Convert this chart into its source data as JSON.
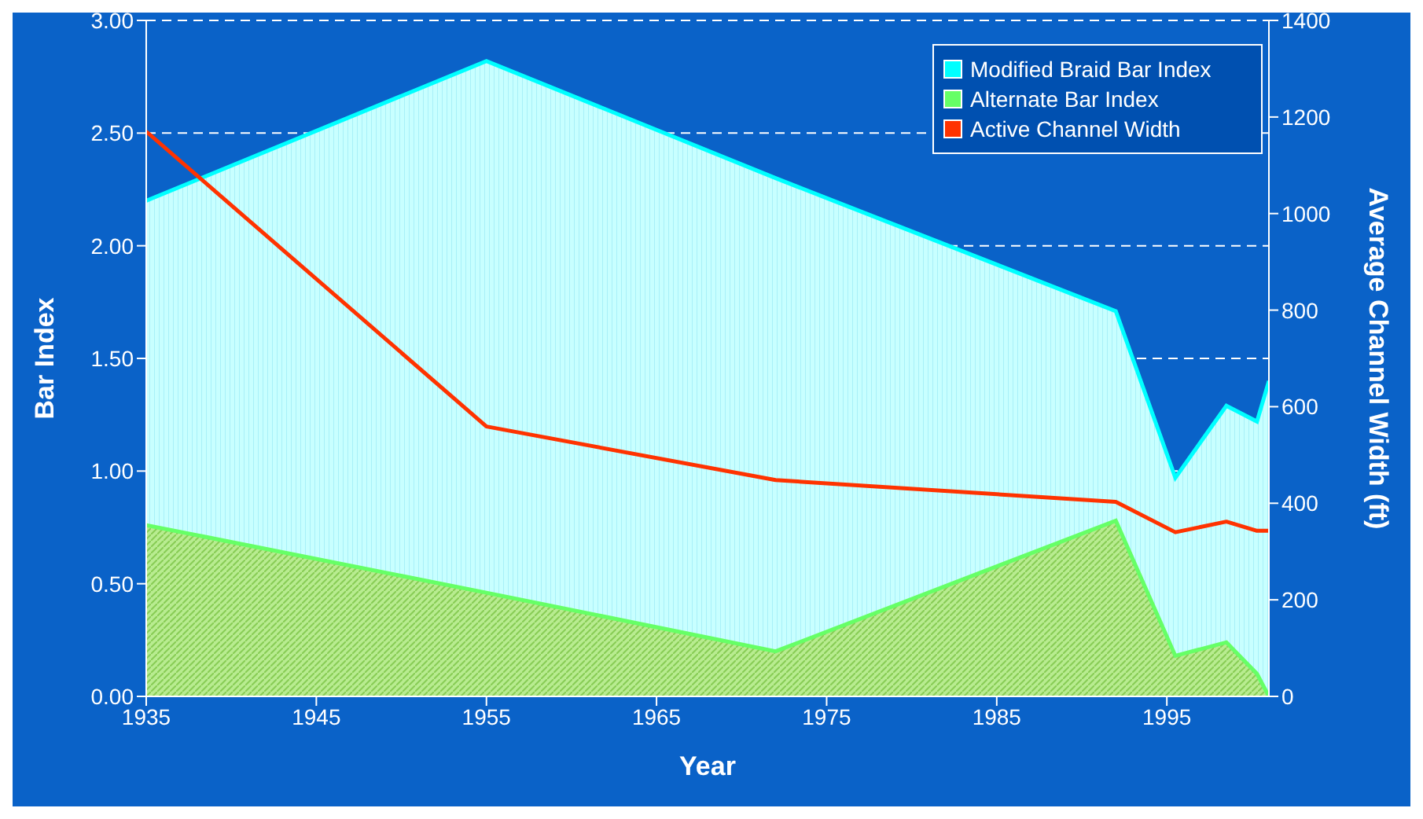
{
  "chart_data": {
    "type": "area",
    "xlabel": "Year",
    "ylabel": "Bar Index",
    "y2label": "Average Channel Width (ft)",
    "x": [
      1935,
      1955,
      1972,
      1992,
      1995.5,
      1998.5,
      2000.3,
      2001
    ],
    "series": [
      {
        "name": "Modified Braid Bar Index",
        "color": "#00ffff",
        "values": [
          2.2,
          2.82,
          2.3,
          1.71,
          0.97,
          1.29,
          1.22,
          1.4
        ]
      },
      {
        "name": "Alternate Bar Index",
        "color": "#66ff66",
        "values": [
          0.76,
          0.46,
          0.2,
          0.78,
          0.18,
          0.24,
          0.1,
          0
        ]
      },
      {
        "name": "Active Channel Width",
        "type": "line",
        "axis": "y2",
        "color": "#ff3300",
        "values": [
          1170,
          559,
          448,
          403,
          340,
          362,
          343,
          343
        ]
      }
    ],
    "xlim": [
      1935,
      2001
    ],
    "xticks": [
      1935,
      1945,
      1955,
      1965,
      1975,
      1985,
      1995
    ],
    "ylim": [
      0,
      3
    ],
    "yticks": [
      {
        "value": 0,
        "label": "0.00"
      },
      {
        "value": 0.5,
        "label": "0.50"
      },
      {
        "value": 1,
        "label": "1.00"
      },
      {
        "value": 1.5,
        "label": "1.50"
      },
      {
        "value": 2,
        "label": "2.00"
      },
      {
        "value": 2.5,
        "label": "2.50"
      },
      {
        "value": 3,
        "label": "3.00"
      }
    ],
    "y2lim": [
      0,
      1400
    ],
    "y2ticks": [
      0,
      200,
      400,
      600,
      800,
      1000,
      1200,
      1400
    ],
    "grid": "y",
    "legend": "top right",
    "marker": "none"
  }
}
